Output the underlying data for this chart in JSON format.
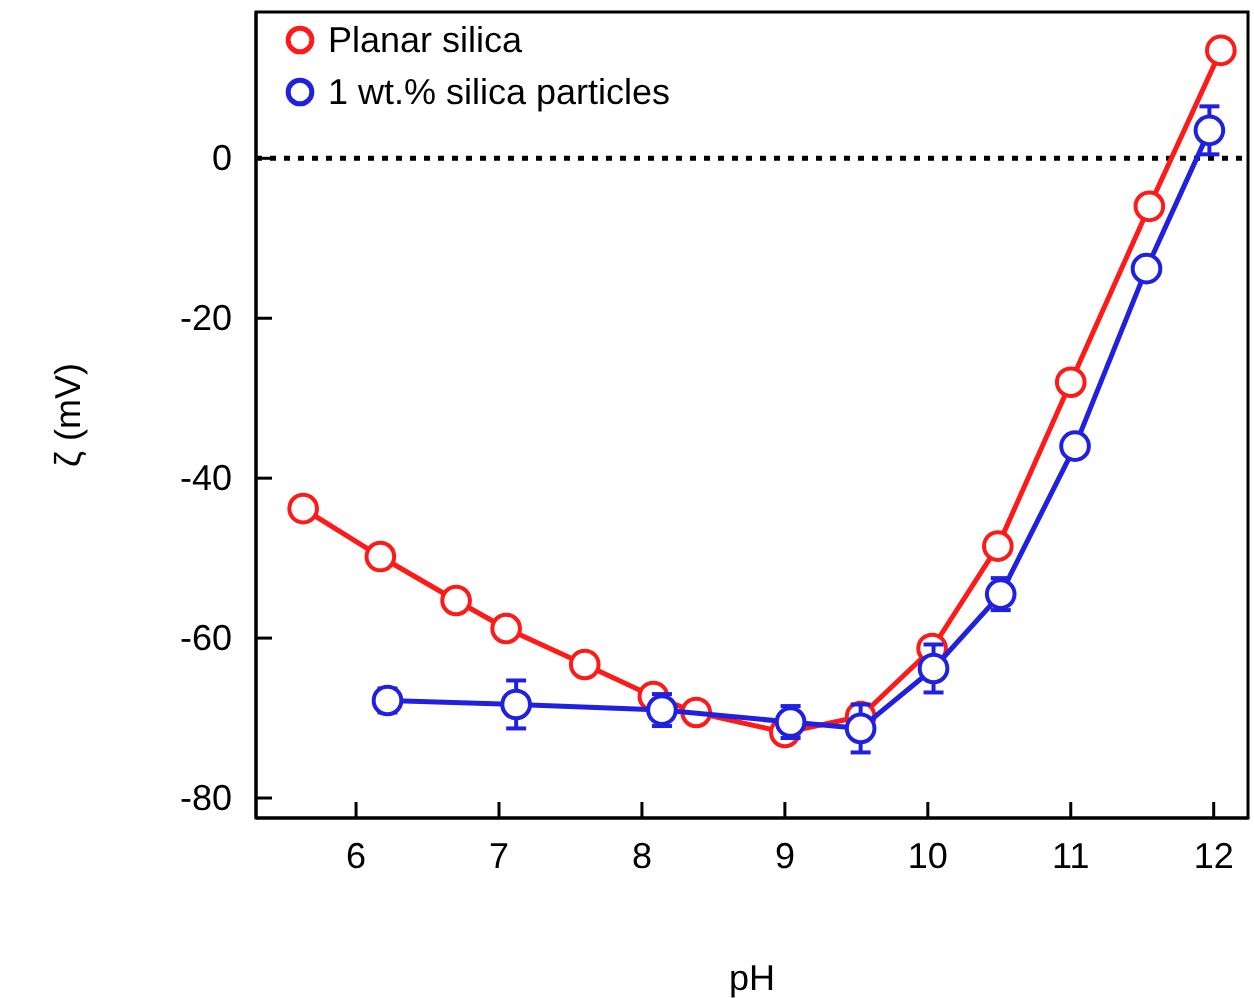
{
  "chart_data": {
    "type": "line",
    "xlabel": "pH",
    "ylabel": "ζ (mV)",
    "xlim": [
      5.3,
      12.24
    ],
    "xticks": [
      6,
      7,
      8,
      9,
      10,
      11,
      12
    ],
    "ylim": [
      -82.5,
      18.3
    ],
    "yticks": [
      -80,
      -60,
      -40,
      -20,
      0
    ],
    "marker": "circle",
    "legend": "top left",
    "grid": false,
    "ref_lines": [
      {
        "axis": "y",
        "value": 0,
        "line_style": "dotted",
        "color": "#000000"
      }
    ],
    "series": [
      {
        "name": "Planar silica",
        "color": "#ff1a1a",
        "x": [
          5.63,
          6.17,
          6.7,
          7.05,
          7.6,
          8.08,
          8.38,
          9.0,
          9.53,
          10.03,
          10.49,
          11.0,
          11.55,
          12.05
        ],
        "values": [
          -43.8,
          -49.8,
          -55.3,
          -58.8,
          -63.3,
          -67.3,
          -69.3,
          -71.8,
          -69.8,
          -61.3,
          -48.5,
          -28,
          -6,
          13.5
        ]
      },
      {
        "name": "1 wt.% silica particles",
        "color": "#2020e0",
        "x": [
          6.22,
          7.12,
          8.14,
          9.04,
          9.53,
          10.04,
          10.51,
          11.03,
          11.53,
          11.97
        ],
        "values": [
          -67.8,
          -68.3,
          -69,
          -70.5,
          -71.3,
          -63.8,
          -54.5,
          -36,
          -13.8,
          3.5
        ],
        "errors": [
          1.5,
          3,
          2,
          2,
          3,
          3,
          2,
          1,
          1,
          3
        ]
      }
    ]
  }
}
